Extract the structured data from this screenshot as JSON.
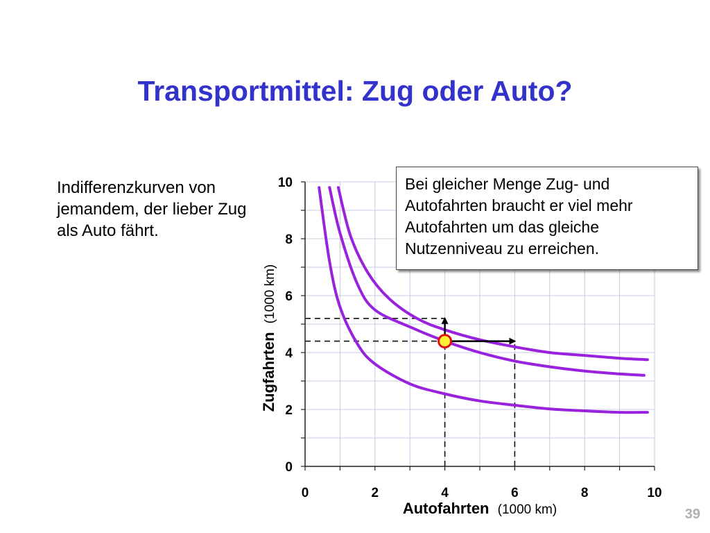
{
  "slide": {
    "title": "Transportmittel: Zug oder Auto?",
    "description": "Indifferenzkurven von jemandem, der lieber Zug als Auto fährt.",
    "callout": "Bei gleicher Menge Zug- und Autofahrten braucht er viel mehr Autofahrten um das gleiche Nutzenniveau zu erreichen.",
    "page_number": "39"
  },
  "chart_data": {
    "type": "line",
    "xlabel": "Autofahrten",
    "xlabel_unit": "(1000 km)",
    "ylabel": "Zugfahrten",
    "ylabel_unit": "(1000 km)",
    "xlim": [
      0,
      10
    ],
    "ylim": [
      0,
      10
    ],
    "x_ticks": [
      0,
      2,
      4,
      6,
      8,
      10
    ],
    "y_ticks": [
      0,
      2,
      4,
      6,
      8,
      10
    ],
    "grid": true,
    "series": [
      {
        "x": [
          0.4,
          0.7,
          1.0,
          1.5,
          2.0,
          3.0,
          4.0,
          5.0,
          6.0,
          7.0,
          8.0,
          9.0,
          9.8
        ],
        "y": [
          9.8,
          7.2,
          5.6,
          4.3,
          3.6,
          2.9,
          2.55,
          2.3,
          2.15,
          2.02,
          1.95,
          1.9,
          1.9
        ]
      },
      {
        "x": [
          0.7,
          1.0,
          1.5,
          2.0,
          3.0,
          4.0,
          5.0,
          6.0,
          7.0,
          8.0,
          9.0,
          9.7
        ],
        "y": [
          9.8,
          8.2,
          6.4,
          5.5,
          4.9,
          4.4,
          4.0,
          3.7,
          3.5,
          3.35,
          3.25,
          3.2
        ]
      },
      {
        "x": [
          0.95,
          1.3,
          1.8,
          2.4,
          3.2,
          4.0,
          5.0,
          6.0,
          7.0,
          8.0,
          9.0,
          9.8
        ],
        "y": [
          9.8,
          8.1,
          6.8,
          5.9,
          5.2,
          4.8,
          4.45,
          4.2,
          4.0,
          3.9,
          3.8,
          3.75
        ]
      }
    ],
    "marker_point": {
      "x": 4,
      "y": 4.4
    },
    "guides": [
      {
        "from": [
          0,
          5.2
        ],
        "to": [
          4,
          5.2
        ]
      },
      {
        "from": [
          0,
          4.4
        ],
        "to": [
          4,
          4.4
        ]
      },
      {
        "from": [
          4,
          0
        ],
        "to": [
          4,
          4.4
        ]
      },
      {
        "from": [
          6,
          0
        ],
        "to": [
          6,
          4.4
        ]
      }
    ],
    "arrows": [
      {
        "from": [
          4,
          4.4
        ],
        "to": [
          4,
          5.2
        ]
      },
      {
        "from": [
          4,
          4.4
        ],
        "to": [
          6,
          4.4
        ]
      }
    ],
    "colors": {
      "curve": "#9922dd",
      "grid": "#c8c8e6",
      "marker_fill": "#ffee33",
      "marker_stroke": "#dd1111",
      "title": "#3333cc"
    }
  }
}
